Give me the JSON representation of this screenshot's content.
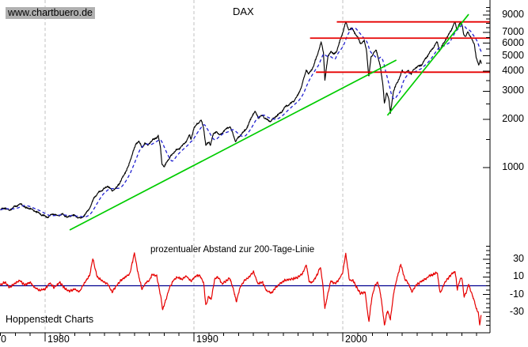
{
  "header": {
    "watermark": "www.chartbuero.de",
    "title": "DAX"
  },
  "footer": {
    "brand": "Hoppenstedt Charts"
  },
  "chart_data": {
    "type": "line",
    "title": "DAX",
    "grid": "vertical-dashed-at-decades",
    "legend_position": "none",
    "x_axis": {
      "unit": "year",
      "range": [
        1977.0,
        2009.9
      ],
      "tick_interval": 1,
      "gridlines_at": [
        1980,
        1990,
        2000
      ],
      "labels": [
        {
          "text": "0",
          "x": 1
        },
        {
          "text": "1980",
          "year": 1980
        },
        {
          "text": "1990",
          "year": 1990
        },
        {
          "text": "2000",
          "year": 2000
        }
      ]
    },
    "price_panel": {
      "scale": "log",
      "ylim": [
        900,
        10000
      ],
      "labeled_ticks": [
        1000,
        2000,
        3000,
        4000,
        5000,
        6000,
        7000,
        9000
      ],
      "minor_ticks": [
        1500,
        2500,
        3500,
        4500,
        5500,
        6500,
        7500,
        8000,
        8500,
        9500,
        10000
      ],
      "series": {
        "name": "DAX",
        "color": "#000000",
        "anchors": [
          [
            1977.0,
            545
          ],
          [
            1977.3,
            560
          ],
          [
            1977.6,
            540
          ],
          [
            1978.0,
            575
          ],
          [
            1978.4,
            590
          ],
          [
            1978.7,
            560
          ],
          [
            1979.0,
            555
          ],
          [
            1979.4,
            530
          ],
          [
            1979.8,
            505
          ],
          [
            1980.2,
            490
          ],
          [
            1980.5,
            515
          ],
          [
            1980.8,
            500
          ],
          [
            1981.2,
            510
          ],
          [
            1981.5,
            488
          ],
          [
            1981.8,
            505
          ],
          [
            1982.1,
            495
          ],
          [
            1982.4,
            480
          ],
          [
            1982.7,
            510
          ],
          [
            1983.0,
            560
          ],
          [
            1983.3,
            650
          ],
          [
            1983.6,
            700
          ],
          [
            1983.9,
            730
          ],
          [
            1984.2,
            765
          ],
          [
            1984.5,
            715
          ],
          [
            1984.8,
            750
          ],
          [
            1985.0,
            800
          ],
          [
            1985.3,
            900
          ],
          [
            1985.6,
            1020
          ],
          [
            1985.9,
            1250
          ],
          [
            1986.1,
            1400
          ],
          [
            1986.3,
            1470
          ],
          [
            1986.5,
            1330
          ],
          [
            1986.7,
            1420
          ],
          [
            1986.9,
            1380
          ],
          [
            1987.1,
            1455
          ],
          [
            1987.4,
            1525
          ],
          [
            1987.6,
            1570
          ],
          [
            1987.75,
            1340
          ],
          [
            1987.85,
            1060
          ],
          [
            1988.0,
            1000
          ],
          [
            1988.2,
            1100
          ],
          [
            1988.4,
            1160
          ],
          [
            1988.6,
            1230
          ],
          [
            1988.8,
            1285
          ],
          [
            1989.0,
            1315
          ],
          [
            1989.3,
            1395
          ],
          [
            1989.5,
            1470
          ],
          [
            1989.7,
            1600
          ],
          [
            1989.8,
            1505
          ],
          [
            1990.0,
            1760
          ],
          [
            1990.2,
            1880
          ],
          [
            1990.5,
            1965
          ],
          [
            1990.65,
            1770
          ],
          [
            1990.8,
            1370
          ],
          [
            1991.0,
            1450
          ],
          [
            1991.1,
            1380
          ],
          [
            1991.3,
            1620
          ],
          [
            1991.5,
            1685
          ],
          [
            1991.7,
            1590
          ],
          [
            1992.0,
            1680
          ],
          [
            1992.2,
            1760
          ],
          [
            1992.4,
            1805
          ],
          [
            1992.6,
            1650
          ],
          [
            1992.8,
            1450
          ],
          [
            1993.0,
            1550
          ],
          [
            1993.3,
            1655
          ],
          [
            1993.6,
            1800
          ],
          [
            1993.9,
            2105
          ],
          [
            1994.1,
            2245
          ],
          [
            1994.35,
            2050
          ],
          [
            1994.6,
            2120
          ],
          [
            1994.85,
            2010
          ],
          [
            1995.1,
            1950
          ],
          [
            1995.35,
            2020
          ],
          [
            1995.6,
            2130
          ],
          [
            1995.85,
            2205
          ],
          [
            1996.1,
            2380
          ],
          [
            1996.4,
            2485
          ],
          [
            1996.7,
            2605
          ],
          [
            1997.0,
            2850
          ],
          [
            1997.25,
            3250
          ],
          [
            1997.55,
            4100
          ],
          [
            1997.7,
            3850
          ],
          [
            1997.85,
            4005
          ],
          [
            1998.05,
            4350
          ],
          [
            1998.3,
            5100
          ],
          [
            1998.55,
            6100
          ],
          [
            1998.7,
            5250
          ],
          [
            1998.8,
            3550
          ],
          [
            1999.0,
            4900
          ],
          [
            1999.2,
            5350
          ],
          [
            1999.4,
            5080
          ],
          [
            1999.6,
            5400
          ],
          [
            1999.8,
            6120
          ],
          [
            2000.0,
            7000
          ],
          [
            2000.2,
            8110
          ],
          [
            2000.4,
            7320
          ],
          [
            2000.6,
            7430
          ],
          [
            2000.8,
            7000
          ],
          [
            2001.0,
            6480
          ],
          [
            2001.2,
            5980
          ],
          [
            2001.45,
            6180
          ],
          [
            2001.6,
            5400
          ],
          [
            2001.75,
            3650
          ],
          [
            2001.9,
            4900
          ],
          [
            2002.1,
            5280
          ],
          [
            2002.25,
            5380
          ],
          [
            2002.5,
            4420
          ],
          [
            2002.7,
            3250
          ],
          [
            2002.8,
            2520
          ],
          [
            2002.95,
            2950
          ],
          [
            2003.1,
            2650
          ],
          [
            2003.2,
            2210
          ],
          [
            2003.4,
            2950
          ],
          [
            2003.6,
            3350
          ],
          [
            2003.8,
            3600
          ],
          [
            2004.0,
            4060
          ],
          [
            2004.2,
            3880
          ],
          [
            2004.4,
            4060
          ],
          [
            2004.6,
            3840
          ],
          [
            2004.8,
            4150
          ],
          [
            2005.0,
            4260
          ],
          [
            2005.3,
            4400
          ],
          [
            2005.6,
            4850
          ],
          [
            2005.9,
            5320
          ],
          [
            2006.1,
            5670
          ],
          [
            2006.35,
            6120
          ],
          [
            2006.5,
            5350
          ],
          [
            2006.7,
            5820
          ],
          [
            2006.9,
            6310
          ],
          [
            2007.1,
            6750
          ],
          [
            2007.3,
            7310
          ],
          [
            2007.5,
            8000
          ],
          [
            2007.55,
            8120
          ],
          [
            2007.65,
            7340
          ],
          [
            2007.8,
            7820
          ],
          [
            2007.95,
            8060
          ],
          [
            2008.05,
            7600
          ],
          [
            2008.12,
            6860
          ],
          [
            2008.25,
            6520
          ],
          [
            2008.4,
            7060
          ],
          [
            2008.55,
            6740
          ],
          [
            2008.7,
            6260
          ],
          [
            2008.85,
            5880
          ],
          [
            2008.95,
            5000
          ],
          [
            2009.05,
            4560
          ],
          [
            2009.15,
            4340
          ],
          [
            2009.25,
            4710
          ],
          [
            2009.32,
            4520
          ]
        ]
      },
      "moving_average": {
        "name": "200-Tage-Linie",
        "color": "#2020d0",
        "style": "dashed",
        "window_years": 0.76
      },
      "resistance_lines": [
        {
          "value": 8150,
          "from_year": 1999.6,
          "color": "#e60000"
        },
        {
          "value": 6450,
          "from_year": 1997.8,
          "color": "#e60000"
        },
        {
          "value": 3950,
          "from_year": 1998.2,
          "color": "#e60000"
        }
      ],
      "trend_lines": [
        {
          "from": [
            1981.65,
            407
          ],
          "to": [
            2003.6,
            4700
          ],
          "color": "#00cc00"
        },
        {
          "from": [
            2003.0,
            2120
          ],
          "to": [
            2008.46,
            9090
          ],
          "color": "#00cc00"
        }
      ]
    },
    "oscillator_panel": {
      "label": "prozentualer Abstand zur 200-Tage-Linie",
      "scale": "linear",
      "ylim": [
        -48,
        46
      ],
      "tick_interval": 5,
      "labeled_ticks": [
        30,
        10,
        -10,
        -30
      ],
      "zero_line": {
        "value": 0,
        "color": "#000090"
      },
      "series": {
        "name": "prozentualer Abstand zur 200-Tage-Linie",
        "color": "#e60000",
        "anchors": [
          [
            1977.0,
            1
          ],
          [
            1977.3,
            4
          ],
          [
            1977.6,
            -2
          ],
          [
            1978.0,
            3
          ],
          [
            1978.3,
            6
          ],
          [
            1978.6,
            1
          ],
          [
            1979.0,
            4
          ],
          [
            1979.3,
            -2
          ],
          [
            1979.6,
            -5
          ],
          [
            1980.0,
            -4
          ],
          [
            1980.3,
            3
          ],
          [
            1980.6,
            -2
          ],
          [
            1981.0,
            4
          ],
          [
            1981.3,
            -3
          ],
          [
            1981.6,
            -6
          ],
          [
            1982.0,
            -4
          ],
          [
            1982.3,
            -7
          ],
          [
            1982.6,
            2
          ],
          [
            1983.0,
            12
          ],
          [
            1983.2,
            31
          ],
          [
            1983.5,
            10
          ],
          [
            1983.8,
            6
          ],
          [
            1984.2,
            2
          ],
          [
            1984.5,
            -7
          ],
          [
            1984.8,
            0
          ],
          [
            1985.1,
            6
          ],
          [
            1985.4,
            10
          ],
          [
            1985.7,
            14
          ],
          [
            1986.0,
            37
          ],
          [
            1986.2,
            18
          ],
          [
            1986.5,
            -4
          ],
          [
            1986.8,
            4
          ],
          [
            1987.0,
            6
          ],
          [
            1987.2,
            13
          ],
          [
            1987.5,
            11
          ],
          [
            1987.75,
            -10
          ],
          [
            1987.9,
            -27
          ],
          [
            1988.1,
            -17
          ],
          [
            1988.3,
            -5
          ],
          [
            1988.6,
            6
          ],
          [
            1988.9,
            10
          ],
          [
            1989.2,
            7
          ],
          [
            1989.5,
            11
          ],
          [
            1989.8,
            5
          ],
          [
            1990.1,
            11
          ],
          [
            1990.4,
            12
          ],
          [
            1990.65,
            3
          ],
          [
            1990.8,
            -22
          ],
          [
            1991.0,
            -12
          ],
          [
            1991.15,
            -16
          ],
          [
            1991.4,
            8
          ],
          [
            1991.6,
            10
          ],
          [
            1991.9,
            2
          ],
          [
            1992.2,
            6
          ],
          [
            1992.4,
            9
          ],
          [
            1992.65,
            -4
          ],
          [
            1992.85,
            -18
          ],
          [
            1993.1,
            -2
          ],
          [
            1993.4,
            6
          ],
          [
            1993.7,
            10
          ],
          [
            1994.0,
            16
          ],
          [
            1994.3,
            2
          ],
          [
            1994.6,
            4
          ],
          [
            1994.9,
            -6
          ],
          [
            1995.2,
            -8
          ],
          [
            1995.5,
            -2
          ],
          [
            1995.8,
            3
          ],
          [
            1996.1,
            6
          ],
          [
            1996.4,
            7
          ],
          [
            1996.7,
            8
          ],
          [
            1997.0,
            10
          ],
          [
            1997.3,
            14
          ],
          [
            1997.55,
            24
          ],
          [
            1997.75,
            4
          ],
          [
            1997.95,
            4
          ],
          [
            1998.2,
            10
          ],
          [
            1998.5,
            21
          ],
          [
            1998.65,
            3
          ],
          [
            1998.8,
            -26
          ],
          [
            1999.0,
            -9
          ],
          [
            1999.2,
            6
          ],
          [
            1999.45,
            2
          ],
          [
            1999.7,
            6
          ],
          [
            2000.0,
            15
          ],
          [
            2000.2,
            37
          ],
          [
            2000.45,
            6
          ],
          [
            2000.7,
            6
          ],
          [
            2001.0,
            -4
          ],
          [
            2001.2,
            -9
          ],
          [
            2001.5,
            -7
          ],
          [
            2001.75,
            -41
          ],
          [
            2001.95,
            -14
          ],
          [
            2002.15,
            0
          ],
          [
            2002.35,
            4
          ],
          [
            2002.55,
            -10
          ],
          [
            2002.8,
            -45
          ],
          [
            2003.0,
            -28
          ],
          [
            2003.2,
            -38
          ],
          [
            2003.45,
            -5
          ],
          [
            2003.7,
            12
          ],
          [
            2003.9,
            25
          ],
          [
            2004.15,
            8
          ],
          [
            2004.4,
            3
          ],
          [
            2004.65,
            -7
          ],
          [
            2004.9,
            0
          ],
          [
            2005.2,
            4
          ],
          [
            2005.5,
            7
          ],
          [
            2005.8,
            11
          ],
          [
            2006.1,
            13
          ],
          [
            2006.35,
            15
          ],
          [
            2006.55,
            -9
          ],
          [
            2006.8,
            2
          ],
          [
            2007.05,
            8
          ],
          [
            2007.3,
            13
          ],
          [
            2007.55,
            16
          ],
          [
            2007.7,
            -4
          ],
          [
            2007.85,
            6
          ],
          [
            2008.0,
            9
          ],
          [
            2008.15,
            -12
          ],
          [
            2008.3,
            -8
          ],
          [
            2008.45,
            2
          ],
          [
            2008.6,
            -6
          ],
          [
            2008.8,
            -15
          ],
          [
            2008.95,
            -25
          ],
          [
            2009.1,
            -30
          ],
          [
            2009.2,
            -44
          ],
          [
            2009.3,
            -34
          ]
        ]
      }
    },
    "colors": {
      "grid": "#c0c0c0",
      "axis": "#000000",
      "watermark_bg": "#b0b0b0"
    }
  }
}
